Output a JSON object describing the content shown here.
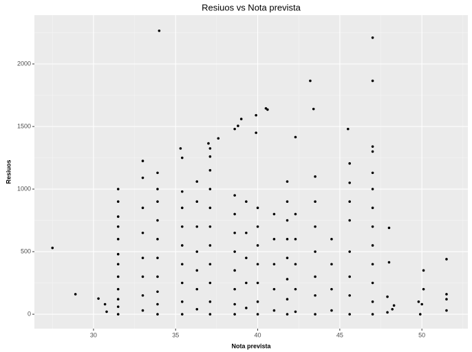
{
  "chart_data": {
    "type": "scatter",
    "title": "Resiuos vs Nota prevista",
    "x_label": "Nota prevista",
    "y_label": "Resiuos",
    "color": "#000000",
    "xlim": [
      26.4,
      52.8
    ],
    "ylim": [
      -115,
      2390
    ],
    "xticks": [
      30,
      35,
      40,
      45,
      50
    ],
    "yticks": [
      0,
      500,
      1000,
      1500,
      2000
    ],
    "xminorticks": [
      27.5,
      32.5,
      37.5,
      42.5,
      47.5,
      52.5
    ],
    "yminorticks": [
      250,
      750,
      1250,
      1750,
      2250
    ],
    "grid": true,
    "x": [
      27.5,
      28.9,
      30.3,
      30.7,
      30.8,
      34.0,
      47.0,
      47.0,
      43.2,
      43.4,
      40.5,
      40.6,
      39.9,
      39.9,
      39.0,
      38.8,
      38.6,
      37.6,
      37.0,
      37.1,
      35.3,
      35.4,
      33.0,
      42.3,
      45.5,
      45.6,
      47.0,
      47.0,
      47.0,
      48.0,
      48.0,
      49.8,
      49.9,
      50.1,
      50.1,
      50.0,
      51.5,
      51.5,
      51.5,
      51.5,
      48.3,
      48.2,
      47.9,
      47.9,
      31.5,
      31.5,
      31.5,
      31.5,
      31.5,
      31.5,
      31.5,
      31.5,
      31.5,
      31.5,
      31.5,
      31.5,
      33.0,
      33.0,
      33.0,
      33.0,
      33.0,
      33.0,
      33.0,
      33.9,
      33.9,
      33.9,
      33.9,
      33.9,
      33.9,
      33.9,
      33.9,
      33.9,
      33.9,
      35.4,
      35.4,
      35.4,
      35.4,
      35.4,
      35.4,
      35.4,
      35.4,
      36.3,
      36.3,
      36.3,
      36.3,
      36.3,
      36.3,
      36.3,
      37.1,
      37.1,
      37.1,
      37.1,
      37.1,
      37.1,
      37.1,
      37.1,
      37.1,
      37.1,
      38.6,
      38.6,
      38.6,
      38.6,
      38.6,
      38.6,
      38.6,
      38.6,
      39.3,
      39.3,
      39.3,
      39.3,
      39.3,
      40.0,
      40.0,
      40.0,
      40.0,
      40.0,
      40.0,
      40.0,
      41.0,
      41.0,
      41.0,
      41.0,
      41.0,
      41.8,
      41.8,
      41.8,
      41.8,
      41.8,
      41.8,
      41.8,
      41.8,
      42.3,
      42.3,
      42.3,
      42.3,
      42.3,
      43.5,
      43.5,
      43.5,
      43.5,
      43.5,
      43.5,
      43.5,
      44.5,
      44.5,
      44.5,
      44.5,
      45.6,
      45.6,
      45.6,
      45.6,
      45.6,
      45.6,
      45.6,
      47.0,
      47.0,
      47.0,
      47.0,
      47.0,
      47.0,
      47.0,
      47.0
    ],
    "values": [
      530,
      160,
      125,
      80,
      20,
      2265,
      2210,
      1865,
      1865,
      1640,
      1645,
      1635,
      1590,
      1450,
      1560,
      1505,
      1480,
      1405,
      1365,
      1325,
      1325,
      1250,
      1225,
      1415,
      1480,
      1205,
      1340,
      1300,
      1130,
      690,
      415,
      100,
      0,
      350,
      200,
      80,
      440,
      160,
      120,
      30,
      70,
      40,
      140,
      15,
      0,
      60,
      120,
      200,
      300,
      400,
      480,
      600,
      700,
      780,
      900,
      1000,
      30,
      150,
      300,
      450,
      650,
      850,
      1090,
      0,
      80,
      180,
      300,
      450,
      600,
      750,
      900,
      1000,
      1130,
      0,
      100,
      250,
      400,
      550,
      700,
      850,
      980,
      40,
      200,
      350,
      500,
      700,
      900,
      1060,
      0,
      100,
      250,
      400,
      550,
      700,
      850,
      1000,
      1150,
      1260,
      0,
      80,
      200,
      350,
      500,
      650,
      800,
      950,
      50,
      250,
      450,
      650,
      900,
      0,
      100,
      250,
      400,
      550,
      700,
      850,
      30,
      200,
      400,
      600,
      800,
      0,
      120,
      280,
      450,
      600,
      750,
      900,
      1060,
      20,
      200,
      400,
      600,
      800,
      0,
      150,
      300,
      500,
      700,
      900,
      1100,
      30,
      200,
      400,
      600,
      0,
      150,
      300,
      500,
      750,
      900,
      1050,
      0,
      100,
      250,
      400,
      550,
      700,
      850,
      1000
    ]
  }
}
